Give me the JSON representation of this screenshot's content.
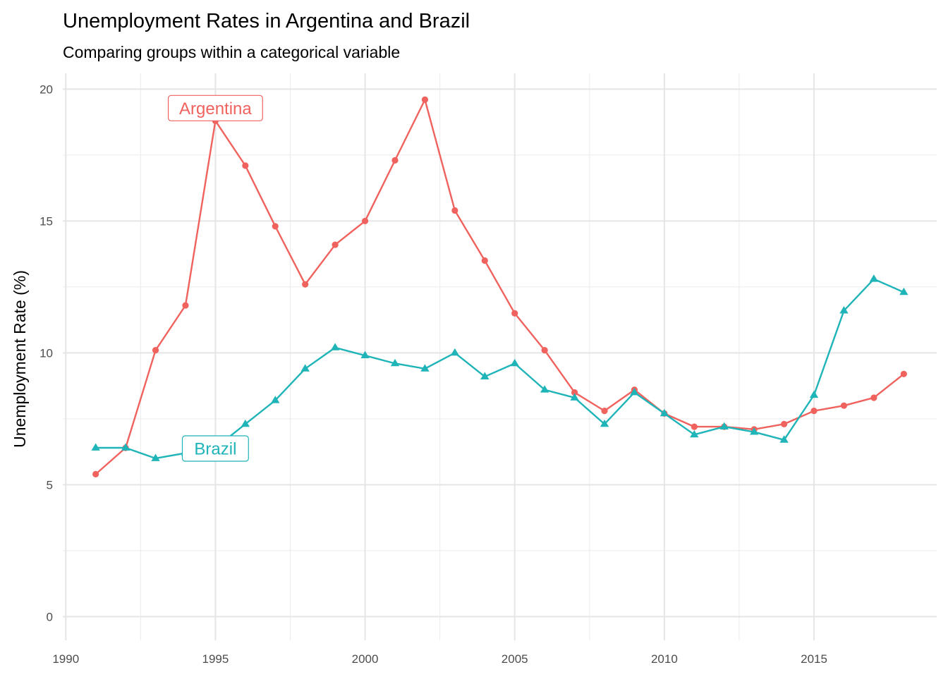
{
  "chart_data": {
    "type": "line",
    "title": "Unemployment Rates in Argentina and Brazil",
    "subtitle": "Comparing groups within a categorical variable",
    "xlabel": "",
    "ylabel": "Unemployment Rate (%)",
    "xlim": [
      1989.9,
      2019.1
    ],
    "ylim": [
      -0.9,
      20.6
    ],
    "x_ticks": [
      1990,
      1995,
      2000,
      2005,
      2010,
      2015
    ],
    "y_ticks": [
      0,
      5,
      10,
      15,
      20
    ],
    "grid": true,
    "legend": "none",
    "x": [
      1991,
      1992,
      1993,
      1994,
      1995,
      1996,
      1997,
      1998,
      1999,
      2000,
      2001,
      2002,
      2003,
      2004,
      2005,
      2006,
      2007,
      2008,
      2009,
      2010,
      2011,
      2012,
      2013,
      2014,
      2015,
      2016,
      2017,
      2018
    ],
    "series": [
      {
        "name": "Argentina",
        "color": "#F0625E",
        "marker": "circle",
        "values": [
          5.4,
          6.4,
          10.1,
          11.8,
          18.8,
          17.1,
          14.8,
          12.6,
          14.1,
          15.0,
          17.3,
          19.6,
          15.4,
          13.5,
          11.5,
          10.1,
          8.5,
          7.8,
          8.6,
          7.7,
          7.2,
          7.2,
          7.1,
          7.3,
          7.8,
          8.0,
          8.3,
          9.2
        ]
      },
      {
        "name": "Brazil",
        "color": "#1FB4B8",
        "marker": "triangle",
        "values": [
          6.4,
          6.4,
          6.0,
          6.2,
          6.4,
          7.3,
          8.2,
          9.4,
          10.2,
          9.9,
          9.6,
          9.4,
          10.0,
          9.1,
          9.6,
          8.6,
          8.3,
          7.3,
          8.5,
          7.7,
          6.9,
          7.2,
          7.0,
          6.7,
          8.4,
          11.6,
          12.8,
          12.3
        ]
      }
    ],
    "annotations": [
      {
        "text": "Argentina",
        "series": 0,
        "x": 1995,
        "y": 18.8
      },
      {
        "text": "Brazil",
        "series": 1,
        "x": 1995,
        "y": 6.4
      }
    ]
  }
}
